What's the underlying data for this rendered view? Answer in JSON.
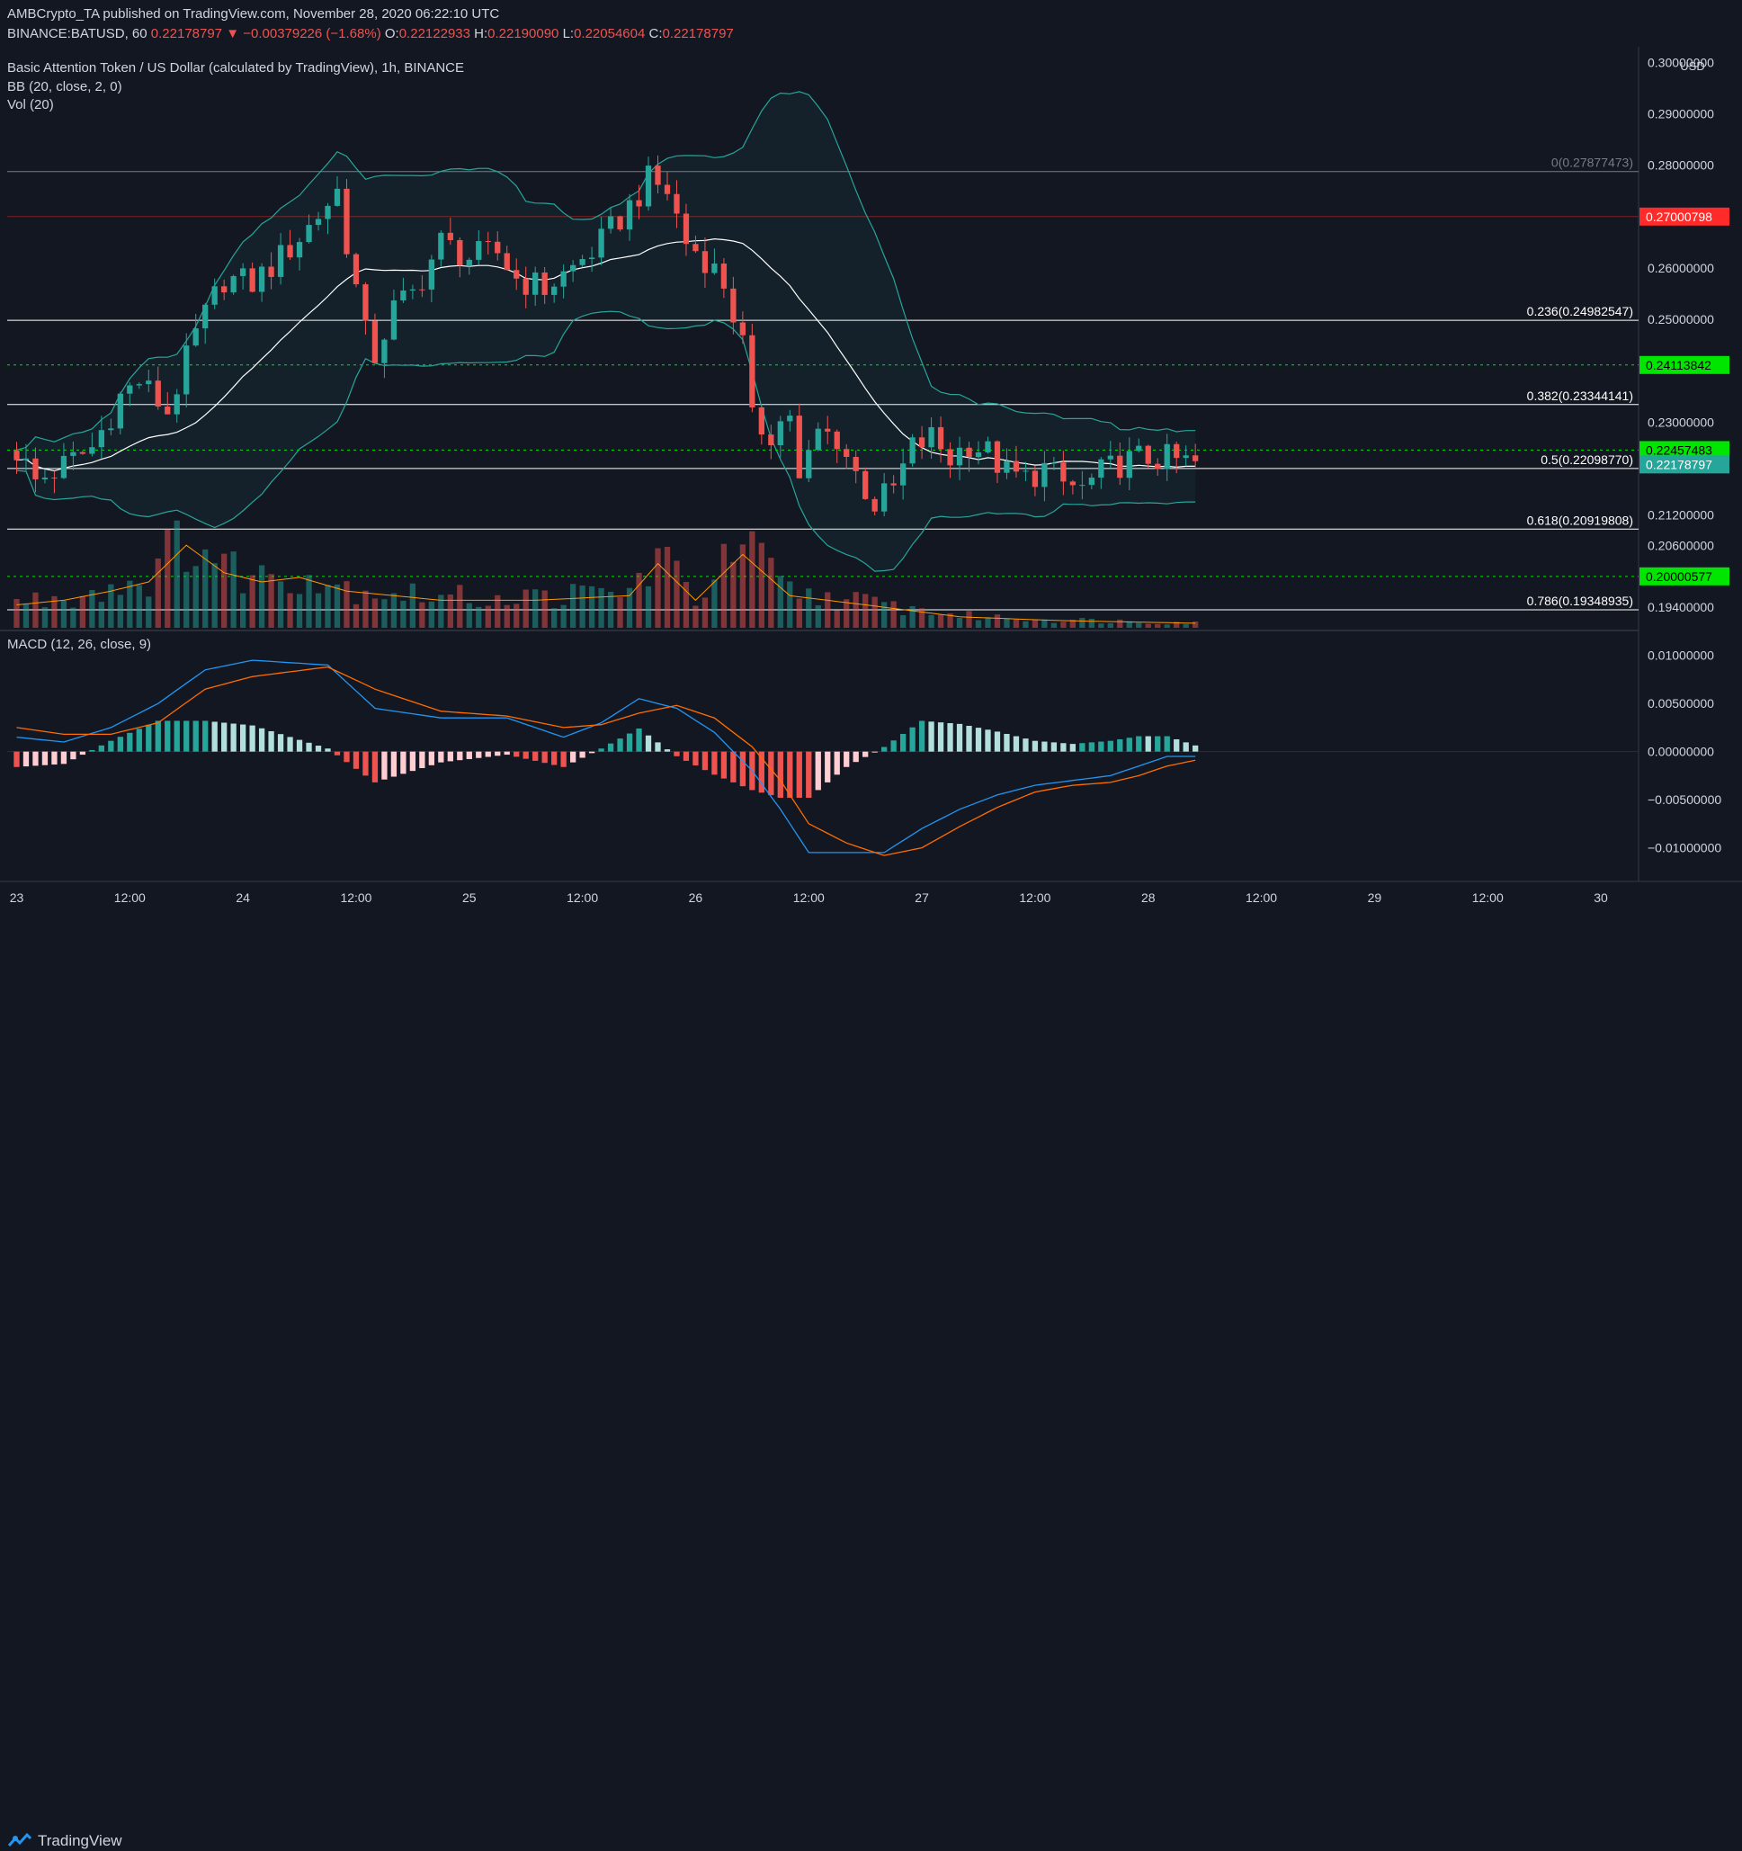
{
  "header": {
    "publisher": "AMBCrypto_TA published on TradingView.com, November 28, 2020 06:22:10 UTC",
    "symbol": "BINANCE:BATUSD, 60",
    "last": "0.22178797",
    "change": "−0.00379226 (−1.68%)",
    "open_label": "O:",
    "open": "0.22122933",
    "high_label": "H:",
    "high": "0.22190090",
    "low_label": "L:",
    "low": "0.22054604",
    "close_label": "C:",
    "close": "0.22178797"
  },
  "legend": {
    "title": "Basic Attention Token / US Dollar (calculated by TradingView), 1h, BINANCE",
    "bb": "BB (20, close, 2, 0)",
    "vol": "Vol (20)",
    "macd": "MACD (12, 26, close, 9)"
  },
  "brand": {
    "name": "TradingView"
  },
  "colors": {
    "background": "#131722",
    "up": "#26a69a",
    "down": "#ef5350",
    "macd": "#2196f3",
    "signal": "#ff6d00",
    "bb": "#26a69a",
    "green_level": "#00e600",
    "red_level": "#ff2b2b"
  },
  "chart_data": [
    {
      "type": "candlestick",
      "title": "Basic Attention Token / US Dollar (calculated by TradingView), 1h, BINANCE",
      "currency": "USD",
      "ylim": [
        0.19,
        0.302
      ],
      "y_ticks": [
        "0.30000000",
        "0.29000000",
        "0.28000000",
        "0.26000000",
        "0.25000000",
        "0.23000000",
        "0.21200000",
        "0.20600000",
        "0.19400000"
      ],
      "y_tick_values": [
        0.3,
        0.29,
        0.28,
        0.26,
        0.25,
        0.23,
        0.212,
        0.206,
        0.194
      ],
      "x_ticks": [
        "23",
        "12:00",
        "24",
        "12:00",
        "25",
        "12:00",
        "26",
        "12:00",
        "27",
        "12:00",
        "28",
        "12:00",
        "29",
        "12:00",
        "30"
      ],
      "x_tick_hours": [
        0,
        12,
        24,
        36,
        48,
        60,
        72,
        84,
        96,
        108,
        120,
        132,
        144,
        156,
        168
      ],
      "x_range_hours": [
        -1,
        172
      ],
      "fib_levels": [
        {
          "label": "0(0.27877473)",
          "value": 0.27877473
        },
        {
          "label": "0.236(0.24982547)",
          "value": 0.24982547
        },
        {
          "label": "0.382(0.23344141)",
          "value": 0.23344141
        },
        {
          "label": "0.5(0.22098770)",
          "value": 0.2209877
        },
        {
          "label": "0.618(0.20919808)",
          "value": 0.20919808
        },
        {
          "label": "0.786(0.19348935)",
          "value": 0.19348935
        }
      ],
      "price_levels": [
        {
          "label": "0.27000798",
          "value": 0.27000798,
          "style": "red"
        },
        {
          "label": "0.24113842",
          "value": 0.24113842,
          "style": "green"
        },
        {
          "label": "0.22457483",
          "value": 0.22457483,
          "style": "green"
        },
        {
          "label": "0.20000577",
          "value": 0.20000577,
          "style": "green"
        }
      ],
      "last_price": {
        "label": "0.22178797",
        "value": 0.22178797
      },
      "close_waypoints": [
        [
          0,
          0.2245
        ],
        [
          2,
          0.2185
        ],
        [
          5,
          0.2215
        ],
        [
          8,
          0.225
        ],
        [
          11,
          0.235
        ],
        [
          13,
          0.238
        ],
        [
          16,
          0.232
        ],
        [
          19,
          0.247
        ],
        [
          22,
          0.258
        ],
        [
          25,
          0.257
        ],
        [
          28,
          0.262
        ],
        [
          31,
          0.268
        ],
        [
          34,
          0.275
        ],
        [
          35,
          0.265
        ],
        [
          37,
          0.247
        ],
        [
          38,
          0.243
        ],
        [
          40,
          0.252
        ],
        [
          42,
          0.255
        ],
        [
          45,
          0.265
        ],
        [
          48,
          0.262
        ],
        [
          51,
          0.263
        ],
        [
          53,
          0.258
        ],
        [
          56,
          0.256
        ],
        [
          59,
          0.26
        ],
        [
          62,
          0.265
        ],
        [
          65,
          0.272
        ],
        [
          67,
          0.277
        ],
        [
          69,
          0.275
        ],
        [
          71,
          0.265
        ],
        [
          73,
          0.262
        ],
        [
          75,
          0.257
        ],
        [
          77,
          0.245
        ],
        [
          78,
          0.23
        ],
        [
          80,
          0.228
        ],
        [
          82,
          0.232
        ],
        [
          83,
          0.218
        ],
        [
          85,
          0.228
        ],
        [
          87,
          0.227
        ],
        [
          89,
          0.22
        ],
        [
          91,
          0.214
        ],
        [
          93,
          0.217
        ],
        [
          95,
          0.225
        ],
        [
          97,
          0.227
        ],
        [
          99,
          0.223
        ],
        [
          101,
          0.226
        ],
        [
          103,
          0.224
        ],
        [
          105,
          0.22
        ],
        [
          107,
          0.219
        ],
        [
          109,
          0.221
        ],
        [
          111,
          0.218
        ],
        [
          113,
          0.217
        ],
        [
          115,
          0.22
        ],
        [
          117,
          0.222
        ],
        [
          119,
          0.223
        ],
        [
          121,
          0.223
        ],
        [
          123,
          0.2225
        ],
        [
          125,
          0.2218
        ]
      ],
      "volume_waypoints": [
        [
          0,
          0.25
        ],
        [
          5,
          0.3
        ],
        [
          10,
          0.4
        ],
        [
          14,
          0.5
        ],
        [
          18,
          0.9
        ],
        [
          22,
          0.6
        ],
        [
          26,
          0.5
        ],
        [
          30,
          0.55
        ],
        [
          35,
          0.4
        ],
        [
          40,
          0.35
        ],
        [
          45,
          0.3
        ],
        [
          55,
          0.3
        ],
        [
          65,
          0.35
        ],
        [
          68,
          0.7
        ],
        [
          72,
          0.3
        ],
        [
          77,
          0.8
        ],
        [
          82,
          0.35
        ],
        [
          90,
          0.25
        ],
        [
          100,
          0.12
        ],
        [
          110,
          0.08
        ],
        [
          125,
          0.05
        ]
      ],
      "macd_waypoints": [
        [
          0,
          0.0015
        ],
        [
          5,
          0.001
        ],
        [
          10,
          0.0025
        ],
        [
          15,
          0.005
        ],
        [
          20,
          0.0085
        ],
        [
          25,
          0.0095
        ],
        [
          33,
          0.009
        ],
        [
          38,
          0.0045
        ],
        [
          45,
          0.0035
        ],
        [
          52,
          0.0035
        ],
        [
          58,
          0.0015
        ],
        [
          62,
          0.003
        ],
        [
          66,
          0.0055
        ],
        [
          70,
          0.0045
        ],
        [
          74,
          0.002
        ],
        [
          78,
          -0.002
        ],
        [
          81,
          -0.006
        ],
        [
          84,
          -0.0105
        ],
        [
          88,
          -0.0105
        ],
        [
          92,
          -0.0105
        ],
        [
          96,
          -0.008
        ],
        [
          100,
          -0.006
        ],
        [
          104,
          -0.0045
        ],
        [
          108,
          -0.0035
        ],
        [
          112,
          -0.003
        ],
        [
          116,
          -0.0025
        ],
        [
          119,
          -0.0015
        ],
        [
          122,
          -0.0005
        ],
        [
          125,
          -0.0005
        ]
      ],
      "signal_waypoints": [
        [
          0,
          0.0025
        ],
        [
          5,
          0.0018
        ],
        [
          10,
          0.0018
        ],
        [
          15,
          0.003
        ],
        [
          20,
          0.0065
        ],
        [
          25,
          0.0078
        ],
        [
          33,
          0.0088
        ],
        [
          38,
          0.0065
        ],
        [
          45,
          0.0042
        ],
        [
          52,
          0.0037
        ],
        [
          58,
          0.0025
        ],
        [
          62,
          0.0028
        ],
        [
          66,
          0.004
        ],
        [
          70,
          0.0048
        ],
        [
          74,
          0.0035
        ],
        [
          78,
          0.0005
        ],
        [
          81,
          -0.003
        ],
        [
          84,
          -0.0075
        ],
        [
          88,
          -0.0095
        ],
        [
          92,
          -0.0108
        ],
        [
          96,
          -0.01
        ],
        [
          100,
          -0.0078
        ],
        [
          104,
          -0.0058
        ],
        [
          108,
          -0.0042
        ],
        [
          112,
          -0.0035
        ],
        [
          116,
          -0.0032
        ],
        [
          119,
          -0.0025
        ],
        [
          122,
          -0.0015
        ],
        [
          125,
          -0.0009
        ]
      ],
      "macd_ylim": [
        -0.0135,
        0.0125
      ],
      "macd_y_ticks": [
        "0.01000000",
        "0.00500000",
        "0.00000000",
        "−0.00500000",
        "−0.01000000"
      ],
      "macd_y_tick_values": [
        0.01,
        0.005,
        0.0,
        -0.005,
        -0.01
      ],
      "bars": 126
    }
  ]
}
